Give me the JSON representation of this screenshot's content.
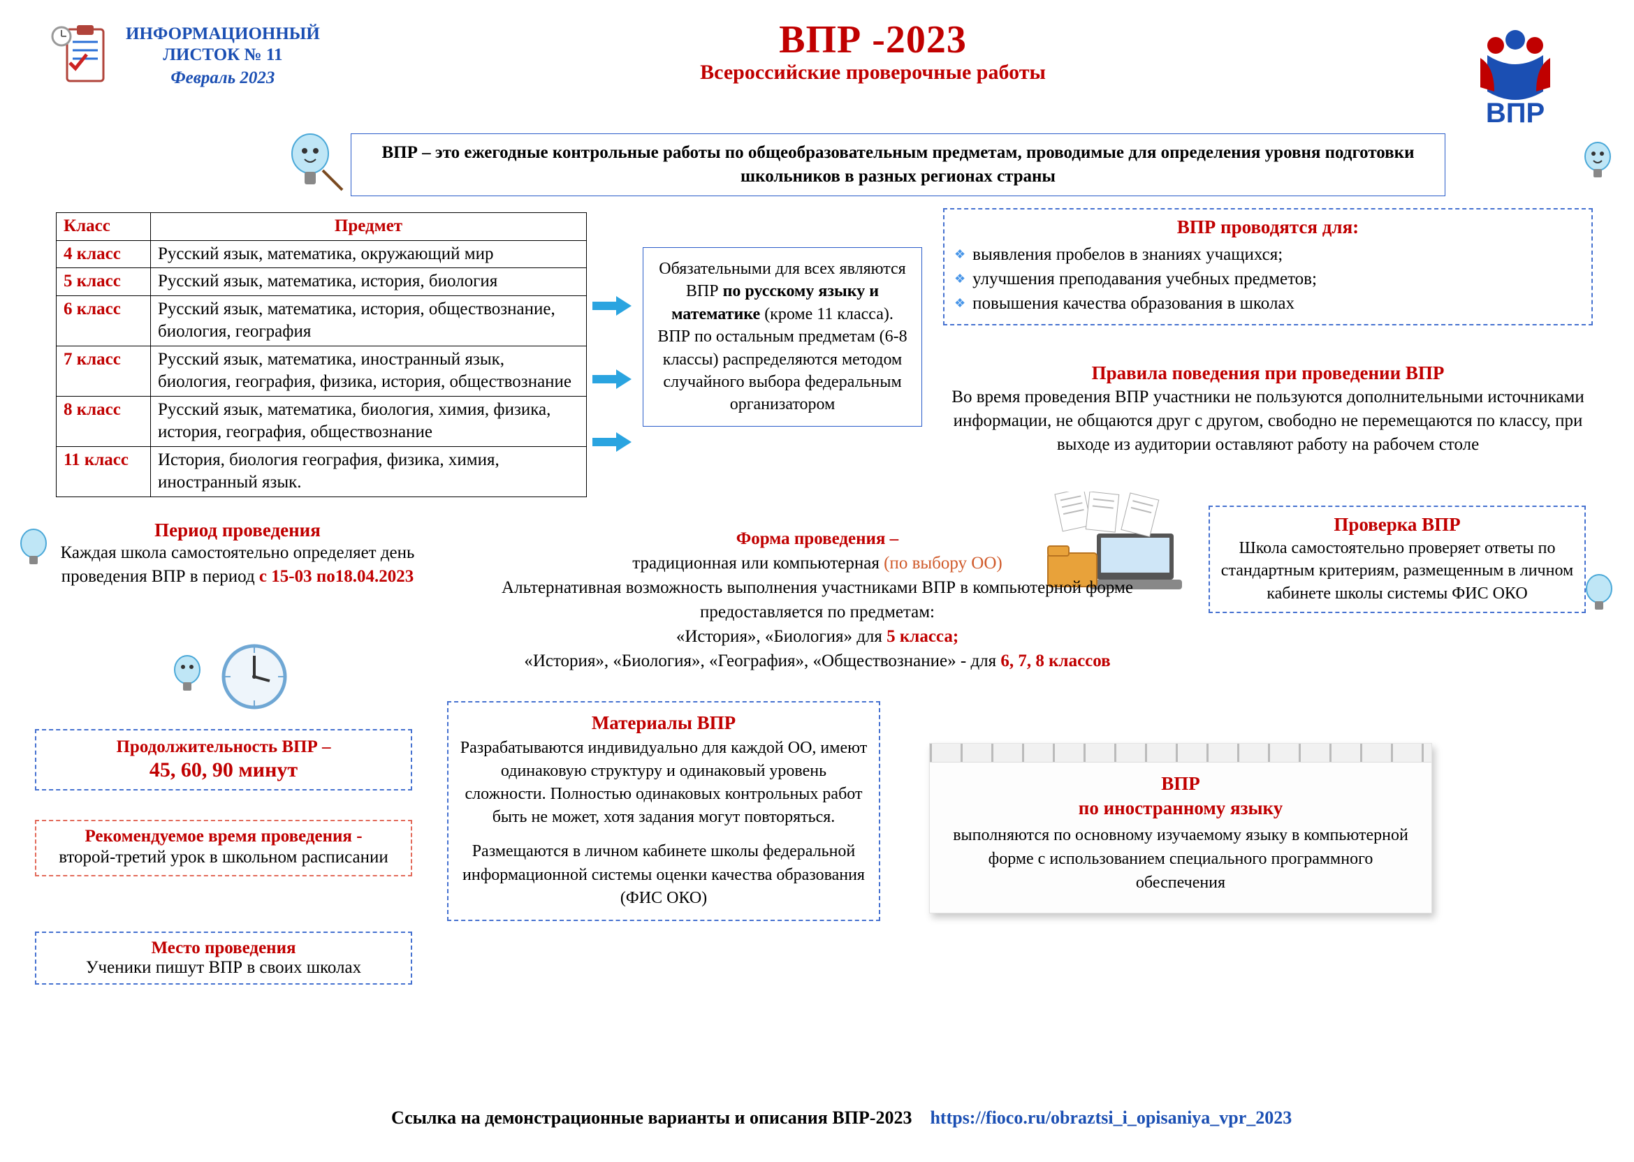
{
  "header": {
    "sheet_line1": "ИНФОРМАЦИОННЫЙ",
    "sheet_line2": "ЛИСТОК № 11",
    "date": "Февраль 2023",
    "title": "ВПР -2023",
    "subtitle": "Всероссийские проверочные работы",
    "logo_text": "ВПР"
  },
  "definition": {
    "prefix": "ВПР",
    "text": " – это ежегодные контрольные работы по общеобразовательным предметам, проводимые для определения уровня подготовки школьников в разных регионах страны"
  },
  "table": {
    "col1": "Класс",
    "col2": "Предмет",
    "rows": [
      {
        "klass": "4 класс",
        "subj": "Русский язык, математика, окружающий мир"
      },
      {
        "klass": "5 класс",
        "subj": "Русский язык, математика, история, биология"
      },
      {
        "klass": "6 класс",
        "subj": "Русский язык, математика, история, обществознание, биология, география"
      },
      {
        "klass": "7 класс",
        "subj": "Русский язык, математика, иностранный язык, биология, география, физика, история, обществознание"
      },
      {
        "klass": "8 класс",
        "subj": "Русский язык, математика, биология, химия, физика, история, география, обществознание"
      },
      {
        "klass": "11 класс",
        "subj": "История, биология география, физика, химия, иностранный язык."
      }
    ]
  },
  "obligatory": {
    "l1": "Обязательными для всех являются ВПР ",
    "bold": "по русскому языку и математике",
    "l2": " (кроме 11 класса).",
    "l3": "ВПР по остальным предметам (6-8 классы) распределяются методом случайного выбора федеральным организатором"
  },
  "purposes": {
    "title": "ВПР проводятся для:",
    "items": [
      "выявления пробелов в знаниях учащихся;",
      "улучшения преподавания учебных предметов;",
      "повышения качества образования в школах"
    ]
  },
  "rules": {
    "title": "Правила поведения при проведении ВПР",
    "body": "Во время проведения ВПР участники не пользуются дополнительными источниками информации, не общаются друг с другом, свободно не перемещаются по классу, при выходе из аудитории оставляют работу на рабочем столе"
  },
  "check": {
    "title": "Проверка ВПР",
    "body": "Школа самостоятельно проверяет ответы по стандартным критериям, размещенным в личном кабинете школы системы ФИС ОКО"
  },
  "period": {
    "title": "Период проведения",
    "l1": "Каждая школа самостоятельно определяет день проведения ВПР в период ",
    "bold": "с 15-03 по18.04.2023"
  },
  "duration": {
    "title": "Продолжительность ВПР –",
    "value": "45, 60, 90 минут"
  },
  "recommended": {
    "title": "Рекомендуемое время проведения -",
    "body": "второй-третий урок в школьном расписании"
  },
  "place": {
    "title": "Место проведения",
    "body": "Ученики пишут ВПР в своих школах"
  },
  "form": {
    "title": "Форма проведения –",
    "l1a": "традиционная или компьютерная ",
    "l1b": "(по выбору ОО)",
    "l2": "Альтернативная возможность выполнения участниками ВПР в компьютерной форме предоставляется по предметам:",
    "l3a": "«История», «Биология» для ",
    "l3b": "5 класса;",
    "l4a": "«История», «Биология», «География», «Обществознание» - для ",
    "l4b": "6, 7, 8 классов"
  },
  "materials": {
    "title": "Материалы ВПР",
    "p1": "Разрабатываются индивидуально для каждой ОО, имеют одинаковую структуру и одинаковый уровень сложности. Полностью одинаковых контрольных работ быть не может, хотя задания могут повторяться.",
    "p2": "Размещаются в личном кабинете школы федеральной информационной системы оценки качества образования (ФИС ОКО)"
  },
  "notepad": {
    "t1": "ВПР",
    "t2": "по иностранному языку",
    "body": "выполняются по основному изучаемому языку в компьютерной форме с использованием специального программного обеспечения"
  },
  "footer": {
    "label": "Ссылка на демонстрационные варианты и описания ВПР-2023",
    "url": "https://fioco.ru/obraztsi_i_opisaniya_vpr_2023"
  },
  "colors": {
    "red": "#c00000",
    "blue": "#1b4fb3",
    "dash_blue": "#4571d0",
    "dash_red": "#e26a5a"
  }
}
